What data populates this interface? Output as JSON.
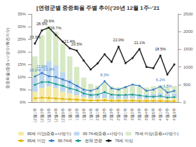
{
  "chart_data": {
    "type": "bar",
    "title": "[연령군별 중증화율 주별 추이('20년 12월 1주~'21",
    "y_label": "중증화율(중증+사망수/확진자수)",
    "categories": [
      "12월1주",
      "12월2주",
      "12월3주",
      "12월4주",
      "12월5주",
      "1월1주",
      "1월2주",
      "1월3주",
      "1월4주",
      "2월1주",
      "2월2주",
      "2월3주",
      "2월4주",
      "3월1주",
      "3월2주",
      "3월3주",
      "3월4주",
      "3월5주",
      "4월1주",
      "4월2주",
      "4월3주"
    ],
    "ylim": [
      0,
      35
    ],
    "yticks": [
      {
        "value": 0,
        "label": "0%"
      },
      {
        "value": 5,
        "label": "5%"
      },
      {
        "value": 10,
        "label": "10%"
      },
      {
        "value": 15,
        "label": "15%"
      },
      {
        "value": 20,
        "label": "20%"
      },
      {
        "value": 25,
        "label": "25%"
      },
      {
        "value": 30,
        "label": "30%"
      },
      {
        "value": 35,
        "label": "35%"
      }
    ],
    "y2lim": [
      0,
      2500
    ],
    "y2ticks": [
      0,
      500,
      1000,
      1500,
      2000,
      2500
    ],
    "stacked": true,
    "grid": false,
    "legend": "bottom",
    "series": [
      {
        "name": "65세 미만(중증+사망수)",
        "type": "bar",
        "axis": "y2",
        "color": "#f5e9a6",
        "values": [
          300,
          400,
          450,
          400,
          300,
          250,
          200,
          150,
          120,
          110,
          120,
          100,
          100,
          100,
          110,
          100,
          100,
          110,
          120,
          110,
          120
        ]
      },
      {
        "name": "65-74세(중증+사망수)",
        "type": "bar",
        "axis": "y2",
        "color": "#bcd7ee",
        "values": [
          400,
          600,
          700,
          650,
          550,
          400,
          300,
          200,
          150,
          140,
          170,
          130,
          120,
          130,
          140,
          130,
          120,
          130,
          140,
          120,
          130
        ]
      },
      {
        "name": "75세 이상(중증+사망수)",
        "type": "bar",
        "axis": "y2",
        "color": "#d6e9c4",
        "values": [
          600,
          900,
          1000,
          950,
          800,
          650,
          500,
          350,
          250,
          220,
          260,
          220,
          200,
          210,
          220,
          210,
          200,
          210,
          220,
          200,
          210
        ]
      },
      {
        "name": "65세 미만",
        "type": "line",
        "color": "#e2b400",
        "marker": "circle",
        "values": [
          1.5,
          1.8,
          1.7,
          1.5,
          1.3,
          1.2,
          1.0,
          0.8,
          0.7,
          0.7,
          0.8,
          0.6,
          0.6,
          0.6,
          0.6,
          0.5,
          0.5,
          0.5,
          0.5,
          0.4,
          0.4
        ]
      },
      {
        "name": "65-74세",
        "type": "line",
        "color": "#3b7dc4",
        "marker": "circle",
        "values": [
          10.2,
          11.6,
          10.3,
          10.0,
          9.0,
          8.0,
          6.5,
          5.0,
          4.5,
          5.5,
          8.3,
          5.5,
          5.0,
          6.0,
          7.0,
          6.5,
          4.5,
          5.0,
          6.2,
          3.8,
          4.5
        ],
        "value_labels": [
          "10.2%",
          "11.6%",
          "10.3%",
          null,
          null,
          null,
          null,
          null,
          null,
          null,
          "8.3%",
          null,
          null,
          null,
          null,
          null,
          null,
          null,
          "6.2%",
          "3.8%",
          null
        ]
      },
      {
        "name": "전체 연령",
        "type": "line",
        "color": "#1f9e8a",
        "marker": "circle",
        "values": [
          6.9,
          8.0,
          8.0,
          7.2,
          6.5,
          5.5,
          4.8,
          3.5,
          2.8,
          3.0,
          4.0,
          3.0,
          2.8,
          2.9,
          3.0,
          2.7,
          2.3,
          2.2,
          2.5,
          1.8,
          2.0
        ]
      },
      {
        "name": "75세 이상",
        "type": "line",
        "color": "#222222",
        "marker": "circle",
        "values": [
          23.3,
          28.5,
          29.6,
          26.7,
          24.0,
          21.4,
          20.5,
          16.5,
          13.0,
          15.4,
          19.0,
          16.0,
          22.0,
          15.5,
          17.5,
          21.1,
          14.0,
          13.5,
          18.5,
          11.0,
          15.0
        ],
        "value_labels": [
          "23.3%",
          "28.5%",
          "29.6%",
          "26.7%",
          null,
          "21.4%",
          "20.5%",
          null,
          null,
          null,
          null,
          null,
          "22.0%",
          null,
          null,
          "21.1%",
          null,
          null,
          "18.5%",
          null,
          null
        ]
      }
    ]
  }
}
